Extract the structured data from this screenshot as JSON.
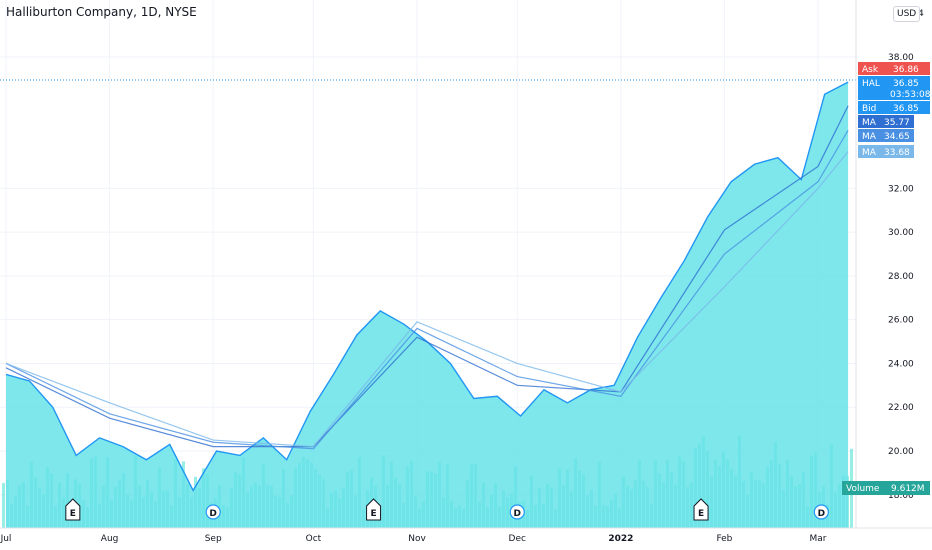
{
  "title": "Halliburton Company, 1D, NYSE",
  "currency": "USD",
  "top_price_label": "4",
  "y_ticks": [
    "38.00",
    "32.00",
    "30.00",
    "28.00",
    "26.00",
    "24.00",
    "22.00",
    "20.00",
    "18.00"
  ],
  "x_ticks": [
    "Jul",
    "Aug",
    "Sep",
    "Oct",
    "Nov",
    "Dec",
    "2022",
    "Feb",
    "Mar"
  ],
  "tags": {
    "ask": {
      "label": "Ask",
      "value": "36.86",
      "color": "#ef5350"
    },
    "hal": {
      "label": "HAL",
      "value": "36.85",
      "time": "03:53:08",
      "color": "#2196f3"
    },
    "bid": {
      "label": "Bid",
      "value": "36.85",
      "color": "#2196f3"
    },
    "ma1": {
      "label": "MA",
      "value": "35.77",
      "color": "#2f6fd1"
    },
    "ma2": {
      "label": "MA",
      "value": "34.65",
      "color": "#4a90e2"
    },
    "ma3": {
      "label": "MA",
      "value": "33.68",
      "color": "#7ab8ea"
    },
    "volume": {
      "label": "Volume",
      "value": "9.612M",
      "color": "#26a69a"
    }
  },
  "events": [
    {
      "type": "E",
      "date": "2021-07-21"
    },
    {
      "type": "D",
      "date": "2021-09-01"
    },
    {
      "type": "E",
      "date": "2021-10-19"
    },
    {
      "type": "D",
      "date": "2021-12-01"
    },
    {
      "type": "E",
      "date": "2022-01-25"
    },
    {
      "type": "D",
      "date": "2022-03-02"
    }
  ],
  "colors": {
    "area": "#66e3e9",
    "line": "#2196f3",
    "volume": "#40e0d0"
  },
  "chart_data": {
    "type": "area",
    "series": [
      {
        "name": "HAL",
        "x": [
          "2021-07-01",
          "2021-07-08",
          "2021-07-15",
          "2021-07-22",
          "2021-07-29",
          "2021-08-05",
          "2021-08-12",
          "2021-08-19",
          "2021-08-26",
          "2021-09-02",
          "2021-09-09",
          "2021-09-16",
          "2021-09-23",
          "2021-09-30",
          "2021-10-07",
          "2021-10-14",
          "2021-10-21",
          "2021-10-28",
          "2021-11-04",
          "2021-11-11",
          "2021-11-18",
          "2021-11-25",
          "2021-12-02",
          "2021-12-09",
          "2021-12-16",
          "2021-12-23",
          "2021-12-30",
          "2022-01-06",
          "2022-01-13",
          "2022-01-20",
          "2022-01-27",
          "2022-02-03",
          "2022-02-10",
          "2022-02-17",
          "2022-02-24",
          "2022-03-03",
          "2022-03-10"
        ],
        "values": [
          23.5,
          23.2,
          22.0,
          19.8,
          20.6,
          20.2,
          19.6,
          20.3,
          18.2,
          20.0,
          19.8,
          20.6,
          19.6,
          21.8,
          23.5,
          25.3,
          26.4,
          25.8,
          25.0,
          24.0,
          22.4,
          22.5,
          21.6,
          22.8,
          22.2,
          22.8,
          23.0,
          25.2,
          27.0,
          28.7,
          30.7,
          32.3,
          33.1,
          33.4,
          32.4,
          36.3,
          36.85
        ]
      },
      {
        "name": "MA",
        "x": [
          "2021-07-01",
          "2021-08-01",
          "2021-09-01",
          "2021-10-01",
          "2021-11-01",
          "2021-12-01",
          "2022-01-01",
          "2022-02-01",
          "2022-03-01",
          "2022-03-10"
        ],
        "values": [
          23.8,
          21.5,
          20.2,
          20.2,
          25.2,
          23.0,
          22.7,
          30.1,
          33.0,
          35.77
        ]
      },
      {
        "name": "MA",
        "x": [
          "2021-07-01",
          "2021-08-01",
          "2021-09-01",
          "2021-10-01",
          "2021-11-01",
          "2021-12-01",
          "2022-01-01",
          "2022-02-01",
          "2022-03-01",
          "2022-03-10"
        ],
        "values": [
          24.0,
          21.7,
          20.4,
          20.1,
          25.6,
          23.4,
          22.5,
          29.0,
          32.3,
          34.65
        ]
      },
      {
        "name": "MA",
        "x": [
          "2021-07-01",
          "2021-08-01",
          "2021-09-01",
          "2021-10-01",
          "2021-11-01",
          "2021-12-01",
          "2022-01-01",
          "2022-02-01",
          "2022-03-01",
          "2022-03-10"
        ],
        "values": [
          24.0,
          22.2,
          20.5,
          20.2,
          25.9,
          24.0,
          22.7,
          27.5,
          32.0,
          33.68
        ]
      }
    ],
    "volume": {
      "name": "Volume",
      "last": "9.612M"
    },
    "ylim": [
      17.5,
      41
    ],
    "grid": true,
    "legend": "none"
  }
}
